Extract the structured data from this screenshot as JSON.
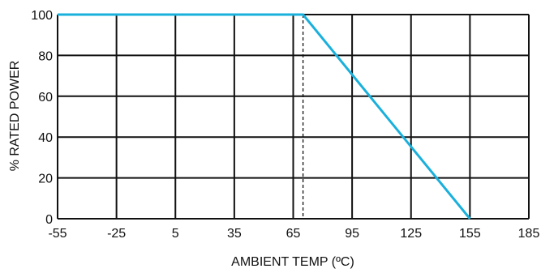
{
  "chart_data": {
    "type": "line",
    "title": "",
    "xlabel": "AMBIENT TEMP (ºC)",
    "ylabel": "% RATED POWER",
    "xlim": [
      -55,
      185
    ],
    "ylim": [
      0,
      100
    ],
    "x_ticks": [
      -55,
      -25,
      5,
      35,
      65,
      95,
      125,
      155,
      185
    ],
    "y_ticks": [
      0,
      20,
      40,
      60,
      80,
      100
    ],
    "grid": true,
    "series": [
      {
        "x": [
          -55,
          70,
          155
        ],
        "y": [
          100,
          100,
          0
        ],
        "color": "#1ab0dc"
      }
    ],
    "reference_lines": [
      {
        "orientation": "vertical",
        "x": 70,
        "style": "dashed",
        "color": "#111111"
      }
    ]
  }
}
